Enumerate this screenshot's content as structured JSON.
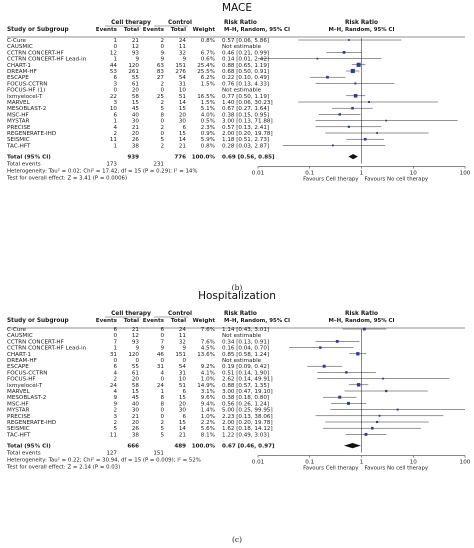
{
  "chart_data": [
    {
      "type": "forest",
      "title": "MACE",
      "caption": "(b)",
      "headers": {
        "study": "Study or Subgroup",
        "group1": "Cell therapy",
        "group2": "Control",
        "events": "Events",
        "total": "Total",
        "weight": "Weight",
        "rr_title": "Risk Ratio",
        "rr_sub": "M–H, Random, 95% CI",
        "plot_title": "Risk Ratio",
        "plot_sub": "M–H, Random, 95% CI"
      },
      "studies": [
        {
          "name": "C-Cure",
          "e1": "1",
          "n1": "21",
          "e2": "2",
          "n2": "24",
          "w": "0.8%",
          "ci": "0.57 [0.06, 5.86]",
          "rr": 0.57,
          "lo": 0.06,
          "hi": 5.86
        },
        {
          "name": "CAUSMIC",
          "e1": "0",
          "n1": "12",
          "e2": "0",
          "n2": "11",
          "w": "",
          "ci": "Not estimable",
          "rr": null,
          "lo": null,
          "hi": null
        },
        {
          "name": "CCTRN CONCERT-HF",
          "e1": "12",
          "n1": "93",
          "e2": "9",
          "n2": "32",
          "w": "6.7%",
          "ci": "0.46 [0.21, 0.99]",
          "rr": 0.46,
          "lo": 0.21,
          "hi": 0.99
        },
        {
          "name": "CCTRN CONCERT-HF Lead-in",
          "e1": "1",
          "n1": "9",
          "e2": "9",
          "n2": "9",
          "w": "0.6%",
          "ci": "0.14 [0.01, 2.42]",
          "rr": 0.14,
          "lo": 0.01,
          "hi": 2.42
        },
        {
          "name": "CHART-1",
          "e1": "44",
          "n1": "120",
          "e2": "63",
          "n2": "151",
          "w": "25.4%",
          "ci": "0.88 [0.65, 1.19]",
          "rr": 0.88,
          "lo": 0.65,
          "hi": 1.19
        },
        {
          "name": "DREAM-HF",
          "e1": "53",
          "n1": "261",
          "e2": "83",
          "n2": "276",
          "w": "25.5%",
          "ci": "0.68 [0.50, 0.91]",
          "rr": 0.68,
          "lo": 0.5,
          "hi": 0.91
        },
        {
          "name": "ESCAPE",
          "e1": "6",
          "n1": "55",
          "e2": "27",
          "n2": "54",
          "w": "6.2%",
          "ci": "0.22 [0.10, 0.49]",
          "rr": 0.22,
          "lo": 0.1,
          "hi": 0.49
        },
        {
          "name": "FOCUS-CCTRN",
          "e1": "3",
          "n1": "61",
          "e2": "2",
          "n2": "31",
          "w": "1.5%",
          "ci": "0.76 [0.13, 4.33]",
          "rr": 0.76,
          "lo": 0.13,
          "hi": 4.33
        },
        {
          "name": "FOCUS-HF (1)",
          "e1": "0",
          "n1": "20",
          "e2": "0",
          "n2": "10",
          "w": "",
          "ci": "Not estimable",
          "rr": null,
          "lo": null,
          "hi": null
        },
        {
          "name": "Ixmyelocel-T",
          "e1": "22",
          "n1": "58",
          "e2": "25",
          "n2": "51",
          "w": "16.5%",
          "ci": "0.77 [0.50, 1.19]",
          "rr": 0.77,
          "lo": 0.5,
          "hi": 1.19
        },
        {
          "name": "MARVEL",
          "e1": "3",
          "n1": "15",
          "e2": "2",
          "n2": "14",
          "w": "1.5%",
          "ci": "1.40 [0.06, 30.23]",
          "rr": 1.4,
          "lo": 0.06,
          "hi": 30.23
        },
        {
          "name": "MESOBLAST-2",
          "e1": "10",
          "n1": "45",
          "e2": "5",
          "n2": "15",
          "w": "5.1%",
          "ci": "0.67 [0.27, 1.64]",
          "rr": 0.67,
          "lo": 0.27,
          "hi": 1.64
        },
        {
          "name": "MSC-HF",
          "e1": "6",
          "n1": "40",
          "e2": "8",
          "n2": "20",
          "w": "4.0%",
          "ci": "0.38 [0.15, 0.95]",
          "rr": 0.38,
          "lo": 0.15,
          "hi": 0.95
        },
        {
          "name": "MYSTAR",
          "e1": "1",
          "n1": "30",
          "e2": "0",
          "n2": "30",
          "w": "0.5%",
          "ci": "3.00 [0.13, 71.88]",
          "rr": 3.0,
          "lo": 0.13,
          "hi": 71.88
        },
        {
          "name": "PRECISE",
          "e1": "4",
          "n1": "21",
          "e2": "2",
          "n2": "6",
          "w": "2.3%",
          "ci": "0.57 [0.13, 2.41]",
          "rr": 0.57,
          "lo": 0.13,
          "hi": 2.41
        },
        {
          "name": "REGENERATE-IHD",
          "e1": "2",
          "n1": "20",
          "e2": "0",
          "n2": "15",
          "w": "0.9%",
          "ci": "2.00 [0.20, 19.78]",
          "rr": 2.0,
          "lo": 0.2,
          "hi": 19.78
        },
        {
          "name": "SEISMIC",
          "e1": "11",
          "n1": "26",
          "e2": "5",
          "n2": "14",
          "w": "5.9%",
          "ci": "1.18 [0.51, 2.73]",
          "rr": 1.18,
          "lo": 0.51,
          "hi": 2.73
        },
        {
          "name": "TAC-HFT",
          "e1": "1",
          "n1": "38",
          "e2": "2",
          "n2": "21",
          "w": "0.8%",
          "ci": "0.28 [0.03, 2.87]",
          "rr": 0.28,
          "lo": 0.03,
          "hi": 2.87
        }
      ],
      "total": {
        "name": "Total (95% CI)",
        "n1": "939",
        "n2": "776",
        "w": "100.0%",
        "ci": "0.69 [0.56, 0.85]",
        "rr": 0.69,
        "lo": 0.56,
        "hi": 0.85
      },
      "total_events": {
        "label": "Total events",
        "e1": "173",
        "e2": "231"
      },
      "heterogeneity": "Heterogeneity: Tau² = 0.02; Chi² = 17.42, df = 15 (P = 0.29); I² = 14%",
      "overall": "Test for overall effect: Z = 3.41 (P = 0.0006)",
      "axis": {
        "scale": "log",
        "ticks": [
          0.01,
          0.1,
          1,
          10,
          100
        ],
        "tick_labels": [
          "0.01",
          "0.1",
          "1",
          "10",
          "100"
        ],
        "left_label": "Favours Cell therapy",
        "right_label": "Favours No cell therapy"
      }
    },
    {
      "type": "forest",
      "title": "Hospitalization",
      "caption": "(c)",
      "headers": {
        "study": "Study or Subgroup",
        "group1": "Cell therapy",
        "group2": "Control",
        "events": "Events",
        "total": "Total",
        "weight": "Weight",
        "rr_title": "Risk Ratio",
        "rr_sub": "M–H, Random, 95% CI",
        "plot_title": "Risk Ratio",
        "plot_sub": "M–H, Random, 95% CI"
      },
      "studies": [
        {
          "name": "C-Cure",
          "e1": "6",
          "n1": "21",
          "e2": "6",
          "n2": "24",
          "w": "7.6%",
          "ci": "1.14 [0.43, 3.01]",
          "rr": 1.14,
          "lo": 0.43,
          "hi": 3.01
        },
        {
          "name": "CAUSMIC",
          "e1": "0",
          "n1": "12",
          "e2": "0",
          "n2": "11",
          "w": "",
          "ci": "Not estimable",
          "rr": null,
          "lo": null,
          "hi": null
        },
        {
          "name": "CCTRN CONCERT-HF",
          "e1": "7",
          "n1": "93",
          "e2": "7",
          "n2": "32",
          "w": "7.6%",
          "ci": "0.34 [0.13, 0.91]",
          "rr": 0.34,
          "lo": 0.13,
          "hi": 0.91
        },
        {
          "name": "CCTRN CONCERT-HF Lead-in",
          "e1": "1",
          "n1": "9",
          "e2": "9",
          "n2": "9",
          "w": "4.5%",
          "ci": "0.16 [0.04, 0.70]",
          "rr": 0.16,
          "lo": 0.04,
          "hi": 0.7
        },
        {
          "name": "CHART-1",
          "e1": "31",
          "n1": "120",
          "e2": "46",
          "n2": "151",
          "w": "13.6%",
          "ci": "0.85 [0.58, 1.24]",
          "rr": 0.85,
          "lo": 0.58,
          "hi": 1.24
        },
        {
          "name": "DREAM-HF",
          "e1": "0",
          "n1": "0",
          "e2": "0",
          "n2": "0",
          "w": "",
          "ci": "Not estimable",
          "rr": null,
          "lo": null,
          "hi": null
        },
        {
          "name": "ESCAPE",
          "e1": "6",
          "n1": "55",
          "e2": "31",
          "n2": "54",
          "w": "9.2%",
          "ci": "0.19 [0.09, 0.42]",
          "rr": 0.19,
          "lo": 0.09,
          "hi": 0.42
        },
        {
          "name": "FOCUS-CCTRN",
          "e1": "4",
          "n1": "61",
          "e2": "4",
          "n2": "31",
          "w": "4.1%",
          "ci": "0.51 [0.14, 1.90]",
          "rr": 0.51,
          "lo": 0.14,
          "hi": 1.9
        },
        {
          "name": "FOCUS-HF",
          "e1": "2",
          "n1": "20",
          "e2": "0",
          "n2": "10",
          "w": "1.0%",
          "ci": "2.62 [0.14, 49.91]",
          "rr": 2.62,
          "lo": 0.14,
          "hi": 49.91
        },
        {
          "name": "Ixmyelocel-T",
          "e1": "24",
          "n1": "58",
          "e2": "24",
          "n2": "51",
          "w": "14.9%",
          "ci": "0.88 [0.57, 1.35]",
          "rr": 0.88,
          "lo": 0.57,
          "hi": 1.35
        },
        {
          "name": "MARVEL",
          "e1": "4",
          "n1": "15",
          "e2": "1",
          "n2": "6",
          "w": "3.1%",
          "ci": "3.00 [0.47, 19.10]",
          "rr": 3.0,
          "lo": 0.47,
          "hi": 19.1
        },
        {
          "name": "MESOBLAST-2",
          "e1": "9",
          "n1": "45",
          "e2": "8",
          "n2": "15",
          "w": "9.6%",
          "ci": "0.38 [0.18, 0.80]",
          "rr": 0.38,
          "lo": 0.18,
          "hi": 0.8
        },
        {
          "name": "MSC-HF",
          "e1": "9",
          "n1": "40",
          "e2": "8",
          "n2": "20",
          "w": "9.4%",
          "ci": "0.56 [0.26, 1.24]",
          "rr": 0.56,
          "lo": 0.26,
          "hi": 1.24
        },
        {
          "name": "MYSTAR",
          "e1": "2",
          "n1": "30",
          "e2": "0",
          "n2": "30",
          "w": "1.4%",
          "ci": "5.00 [0.25, 99.95]",
          "rr": 5.0,
          "lo": 0.25,
          "hi": 99.95
        },
        {
          "name": "PRECISE",
          "e1": "3",
          "n1": "21",
          "e2": "0",
          "n2": "6",
          "w": "1.0%",
          "ci": "2.23 [0.13, 38.06]",
          "rr": 2.23,
          "lo": 0.13,
          "hi": 38.06
        },
        {
          "name": "REGENERATE-IHD",
          "e1": "2",
          "n1": "20",
          "e2": "2",
          "n2": "15",
          "w": "2.2%",
          "ci": "2.00 [0.20, 19.78]",
          "rr": 2.0,
          "lo": 0.2,
          "hi": 19.78
        },
        {
          "name": "SEISMIC",
          "e1": "5",
          "n1": "26",
          "e2": "5",
          "n2": "14",
          "w": "5.6%",
          "ci": "1.62 [0.18, 14.12]",
          "rr": 1.62,
          "lo": 0.18,
          "hi": 14.12
        },
        {
          "name": "TAC-HFT",
          "e1": "11",
          "n1": "38",
          "e2": "5",
          "n2": "21",
          "w": "8.1%",
          "ci": "1.22 [0.49, 3.03]",
          "rr": 1.22,
          "lo": 0.49,
          "hi": 3.03
        }
      ],
      "total": {
        "name": "Total (95% CI)",
        "n1": "666",
        "n2": "489",
        "w": "100.0%",
        "ci": "0.67 [0.46, 0.97]",
        "rr": 0.67,
        "lo": 0.46,
        "hi": 0.97
      },
      "total_events": {
        "label": "Total events",
        "e1": "127",
        "e2": "151"
      },
      "heterogeneity": "Heterogeneity: Tau² = 0.22; Chi² = 30.94, df = 15 (P = 0.009); I² = 52%",
      "overall": "Test for overall effect: Z = 2.14 (P = 0.03)",
      "axis": {
        "scale": "log",
        "ticks": [
          0.01,
          0.1,
          1,
          10,
          100
        ],
        "tick_labels": [
          "0.01",
          "0.1",
          "1",
          "10",
          "100"
        ],
        "left_label": "Favours Cell therapy",
        "right_label": "Favours No cell therapy"
      }
    }
  ]
}
